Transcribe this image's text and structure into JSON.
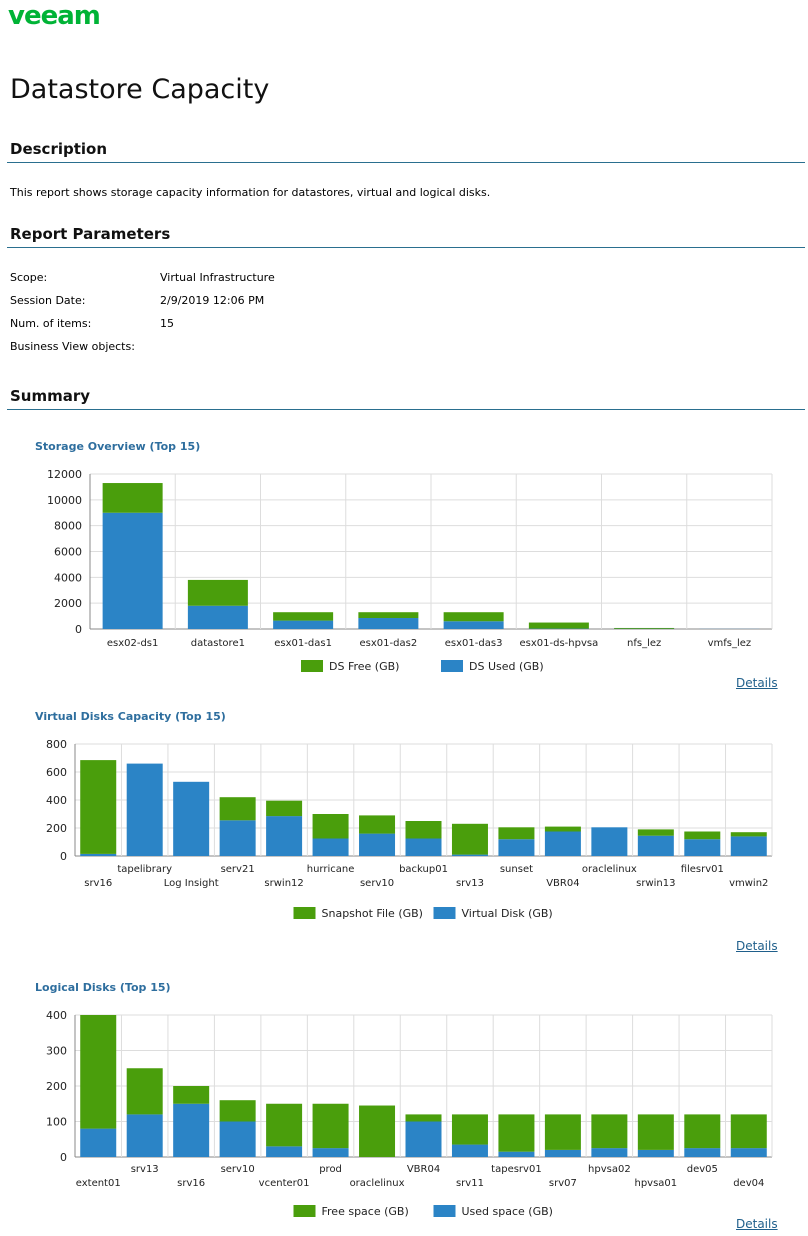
{
  "brand": {
    "logo_text": "veeam",
    "color": "#00b336"
  },
  "page_title": "Datastore Capacity",
  "description": {
    "heading": "Description",
    "text": "This report shows storage capacity information for datastores, virtual and logical disks."
  },
  "parameters": {
    "heading": "Report Parameters",
    "items": [
      {
        "label": "Scope:",
        "value": "Virtual Infrastructure"
      },
      {
        "label": "Session Date:",
        "value": "2/9/2019 12:06 PM"
      },
      {
        "label": "Num. of items:",
        "value": "15"
      },
      {
        "label": "Business View objects:",
        "value": ""
      }
    ]
  },
  "summary": {
    "heading": "Summary"
  },
  "details_label": "Details",
  "colors": {
    "green": "#4a9e0c",
    "blue": "#2b84c6",
    "grid": "#dddddd",
    "axis": "#666666",
    "link": "#1f5f8b"
  },
  "chart_data": [
    {
      "type": "bar",
      "stacked": true,
      "title": "Storage Overview (Top 15)",
      "categories": [
        "esx02-ds1",
        "datastore1",
        "esx01-das1",
        "esx01-das2",
        "esx01-das3",
        "esx01-ds-hpvsa",
        "nfs_lez",
        "vmfs_lez"
      ],
      "series": [
        {
          "name": "DS Used (GB)",
          "color": "#2b84c6",
          "values": [
            9000,
            1800,
            650,
            850,
            600,
            30,
            20,
            10
          ]
        },
        {
          "name": "DS Free (GB)",
          "color": "#4a9e0c",
          "values": [
            2300,
            2000,
            650,
            450,
            700,
            470,
            60,
            0
          ]
        }
      ],
      "legend_order": [
        1,
        0
      ],
      "ylim": [
        0,
        12000
      ],
      "yticks": [
        0,
        2000,
        4000,
        6000,
        8000,
        10000,
        12000
      ],
      "grid": true,
      "legend": "bottom"
    },
    {
      "type": "bar",
      "stacked": true,
      "title": "Virtual Disks Capacity (Top 15)",
      "categories": [
        "srv16",
        "tapelibrary",
        "Log Insight",
        "serv21",
        "srwin12",
        "hurricane",
        "serv10",
        "backup01",
        "srv13",
        "sunset",
        "VBR04",
        "oraclelinux",
        "srwin13",
        "filesrv01",
        "vmwin2"
      ],
      "series": [
        {
          "name": "Virtual Disk (GB)",
          "color": "#2b84c6",
          "values": [
            15,
            660,
            530,
            255,
            285,
            125,
            160,
            125,
            10,
            120,
            175,
            205,
            145,
            120,
            140
          ]
        },
        {
          "name": "Snapshot File (GB)",
          "color": "#4a9e0c",
          "values": [
            670,
            0,
            0,
            165,
            110,
            175,
            130,
            125,
            220,
            85,
            35,
            0,
            45,
            55,
            30
          ]
        }
      ],
      "legend_order": [
        1,
        0
      ],
      "ylim": [
        0,
        800
      ],
      "yticks": [
        0,
        200,
        400,
        600,
        800
      ],
      "grid": true,
      "legend": "bottom"
    },
    {
      "type": "bar",
      "stacked": true,
      "title": "Logical Disks (Top 15)",
      "categories": [
        "extent01",
        "srv13",
        "srv16",
        "serv10",
        "vcenter01",
        "prod",
        "oraclelinux",
        "VBR04",
        "srv11",
        "tapesrv01",
        "srv07",
        "hpvsa02",
        "hpvsa01",
        "dev05",
        "dev04"
      ],
      "series": [
        {
          "name": "Used space (GB)",
          "color": "#2b84c6",
          "values": [
            80,
            120,
            150,
            100,
            30,
            25,
            0,
            100,
            35,
            15,
            20,
            25,
            20,
            25,
            25
          ]
        },
        {
          "name": "Free space (GB)",
          "color": "#4a9e0c",
          "values": [
            320,
            130,
            50,
            60,
            120,
            125,
            145,
            20,
            85,
            105,
            100,
            95,
            100,
            95,
            95
          ]
        }
      ],
      "legend_order": [
        1,
        0
      ],
      "ylim": [
        0,
        400
      ],
      "yticks": [
        0,
        100,
        200,
        300,
        400
      ],
      "grid": true,
      "legend": "bottom"
    }
  ]
}
